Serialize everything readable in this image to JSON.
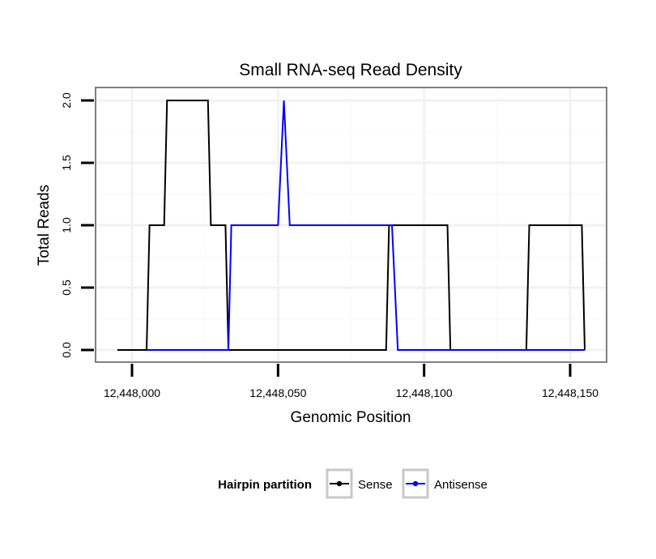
{
  "chart_data": {
    "type": "line",
    "title": "Small RNA-seq Read Density",
    "xlabel": "Genomic Position",
    "ylabel": "Total Reads",
    "xlim": [
      12447995,
      12448160
    ],
    "ylim": [
      0,
      2
    ],
    "x_ticks": [
      12448000,
      12448050,
      12448100,
      12448150
    ],
    "x_tick_labels": [
      "12,448,000",
      "12,448,050",
      "12,448,100",
      "12,448,150"
    ],
    "y_ticks": [
      0,
      0.5,
      1,
      1.5,
      2
    ],
    "y_tick_labels": [
      "0.0",
      "0.5",
      "1.0",
      "1.5",
      "2.0"
    ],
    "grid": true,
    "legend": {
      "title": "Hairpin partition",
      "position": "bottom"
    },
    "series": [
      {
        "name": "Sense",
        "color": "#000000",
        "x": [
          12447995,
          12448005,
          12448006,
          12448011,
          12448012,
          12448026,
          12448027,
          12448032,
          12448033,
          12448087,
          12448088,
          12448108,
          12448109,
          12448135,
          12448136,
          12448154,
          12448155
        ],
        "y": [
          0,
          0,
          1,
          1,
          2,
          2,
          1,
          1,
          0,
          0,
          1,
          1,
          0,
          0,
          1,
          1,
          0
        ]
      },
      {
        "name": "Antisense",
        "color": "#0000ff",
        "x": [
          12448005,
          12448033,
          12448034,
          12448050,
          12448052,
          12448054,
          12448089,
          12448091,
          12448155
        ],
        "y": [
          0,
          0,
          1,
          1,
          2,
          1,
          1,
          0,
          0
        ]
      }
    ]
  }
}
